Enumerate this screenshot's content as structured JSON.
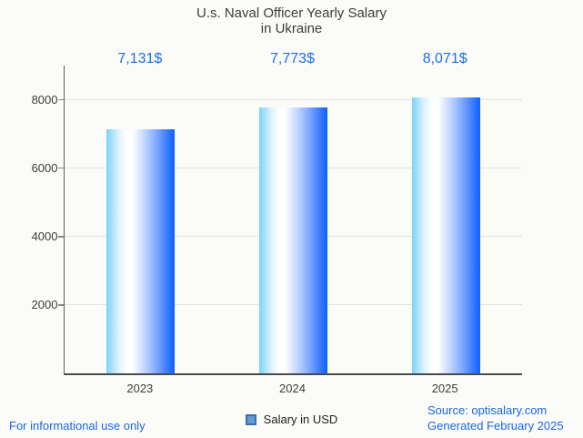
{
  "title": {
    "line1": "U.s. Naval Officer Yearly Salary",
    "line2": "in Ukraine"
  },
  "chart_data": {
    "type": "bar",
    "categories": [
      "2023",
      "2024",
      "2025"
    ],
    "values": [
      7131,
      7773,
      8071
    ],
    "value_labels": [
      "7,131$",
      "7,773$",
      "8,071$"
    ],
    "title": "U.s. Naval Officer Yearly Salary in Ukraine",
    "xlabel": "",
    "ylabel": "",
    "ylim": [
      0,
      9000
    ],
    "yticks": [
      2000,
      4000,
      6000,
      8000
    ],
    "grid": true,
    "legend_position": "bottom-center",
    "series": [
      {
        "name": "Salary in USD",
        "values": [
          7131,
          7773,
          8071
        ]
      }
    ]
  },
  "legend": {
    "label": "Salary in USD",
    "marker_fill": "#619ad6",
    "marker_border": "#3f6da9"
  },
  "footer": {
    "left": "For informational use only",
    "source": "Source: optisalary.com",
    "generated": "Generated February 2025"
  },
  "colors": {
    "background": "#fbfbf8",
    "title_text": "#3d3d3d",
    "value_label_text": "#1a6ef0",
    "axis_line": "#4a4a4a",
    "gridline": "#e2e2e2",
    "tick_text": "#3c3c3c",
    "bar_gradient_left": "#7ed2f9",
    "bar_gradient_mid": "#ffffff",
    "bar_gradient_right": "#0e62fe",
    "footer_text": "#1b66e8"
  }
}
